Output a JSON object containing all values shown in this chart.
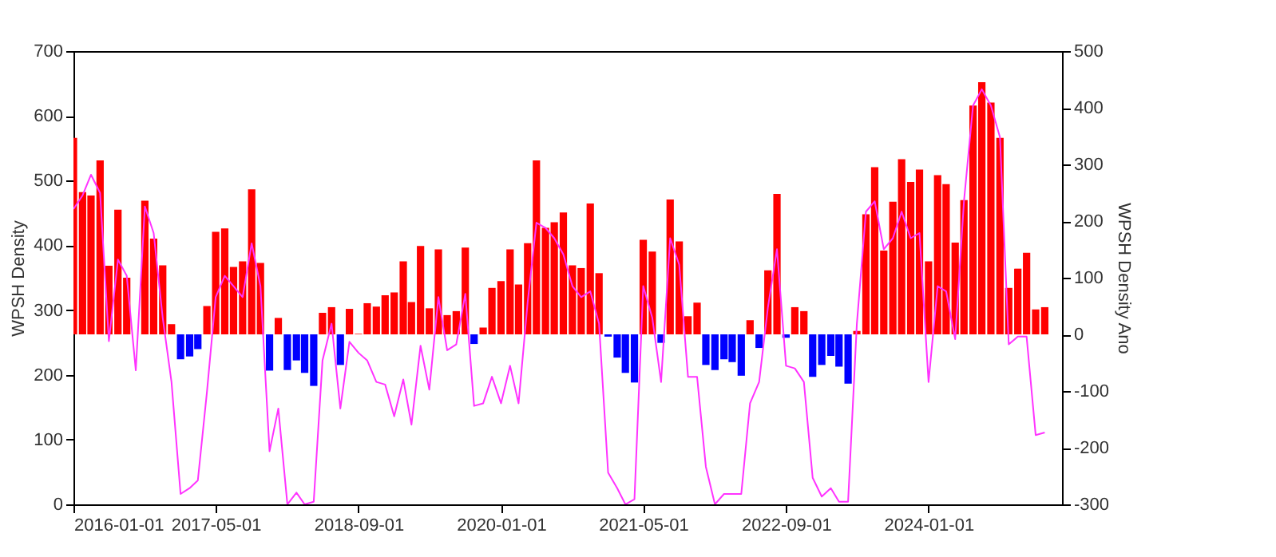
{
  "chart_data": {
    "type": "bar",
    "xlabel": null,
    "ylabel": "WPSH Density",
    "y2label": "WPSH Density Ano",
    "x": [
      "2016-01",
      "2016-02",
      "2016-03",
      "2016-04",
      "2016-05",
      "2016-06",
      "2016-07",
      "2016-08",
      "2016-09",
      "2016-10",
      "2016-11",
      "2016-12",
      "2017-01",
      "2017-02",
      "2017-03",
      "2017-04",
      "2017-05",
      "2017-06",
      "2017-07",
      "2017-08",
      "2017-09",
      "2017-10",
      "2017-11",
      "2017-12",
      "2018-01",
      "2018-02",
      "2018-03",
      "2018-04",
      "2018-05",
      "2018-06",
      "2018-07",
      "2018-08",
      "2018-09",
      "2018-10",
      "2018-11",
      "2018-12",
      "2019-01",
      "2019-02",
      "2019-03",
      "2019-04",
      "2019-05",
      "2019-06",
      "2019-07",
      "2019-08",
      "2019-09",
      "2019-10",
      "2019-11",
      "2019-12",
      "2020-01",
      "2020-02",
      "2020-03",
      "2020-04",
      "2020-05",
      "2020-06",
      "2020-07",
      "2020-08",
      "2020-09",
      "2020-10",
      "2020-11",
      "2020-12",
      "2021-01",
      "2021-02",
      "2021-03",
      "2021-04",
      "2021-05",
      "2021-06",
      "2021-07",
      "2021-08",
      "2021-09",
      "2021-10",
      "2021-11",
      "2021-12",
      "2022-01",
      "2022-02",
      "2022-03",
      "2022-04",
      "2022-05",
      "2022-06",
      "2022-07",
      "2022-08",
      "2022-09",
      "2022-10",
      "2022-11",
      "2022-12",
      "2023-01",
      "2023-02",
      "2023-03",
      "2023-04",
      "2023-05",
      "2023-06",
      "2023-07",
      "2023-08",
      "2023-09",
      "2023-10",
      "2023-11",
      "2023-12",
      "2024-01",
      "2024-02",
      "2024-03",
      "2024-04",
      "2024-05",
      "2024-06",
      "2024-07",
      "2024-08",
      "2024-09",
      "2024-10",
      "2024-11",
      "2024-12",
      "2025-01",
      "2025-02"
    ],
    "series": [
      {
        "axis": "y2",
        "color": "#ff0000",
        "values": [
          347,
          251,
          245,
          307,
          121,
          220,
          100,
          null,
          236,
          169,
          122,
          18,
          null,
          null,
          null,
          50,
          181,
          187,
          119,
          129,
          256,
          126,
          null,
          29,
          null,
          null,
          null,
          null,
          38,
          48,
          null,
          45,
          1,
          55,
          49,
          69,
          74,
          129,
          57,
          156,
          46,
          150,
          34,
          41,
          153,
          null,
          12,
          82,
          94,
          150,
          88,
          161,
          307,
          188,
          198,
          215,
          122,
          117,
          231,
          108,
          null,
          null,
          null,
          null,
          167,
          146,
          null,
          238,
          164,
          32,
          56,
          null,
          null,
          null,
          null,
          null,
          25,
          null,
          113,
          248,
          null,
          48,
          41,
          null,
          null,
          null,
          null,
          null,
          6,
          212,
          295,
          148,
          234,
          309,
          269,
          291,
          129,
          281,
          265,
          162,
          237,
          404,
          445,
          409,
          347,
          82,
          116,
          144,
          44,
          48
        ]
      },
      {
        "axis": "y2",
        "color": "#0000ff",
        "values": [
          null,
          null,
          null,
          null,
          null,
          null,
          null,
          null,
          null,
          null,
          null,
          null,
          -44,
          -39,
          -26,
          null,
          null,
          null,
          null,
          null,
          null,
          null,
          -64,
          null,
          -63,
          -46,
          -68,
          -91,
          null,
          null,
          -54,
          null,
          null,
          null,
          null,
          null,
          null,
          null,
          null,
          null,
          null,
          null,
          null,
          null,
          null,
          -17,
          null,
          null,
          null,
          null,
          null,
          null,
          null,
          null,
          null,
          null,
          null,
          null,
          null,
          null,
          -4,
          -41,
          -68,
          -85,
          null,
          null,
          -15,
          null,
          null,
          null,
          null,
          -54,
          -63,
          -44,
          -49,
          -73,
          null,
          -24,
          null,
          null,
          -6,
          null,
          null,
          -75,
          -54,
          -38,
          -57,
          -87,
          null,
          null,
          null,
          null,
          null,
          null,
          null,
          null,
          null,
          null,
          null,
          null,
          null,
          null,
          null,
          null,
          null,
          null,
          null,
          null,
          null,
          null
        ]
      },
      {
        "type": "line",
        "axis": "y",
        "color": "#ff33ff",
        "values": [
          456,
          477,
          509,
          481,
          252,
          378,
          353,
          207,
          460,
          419,
          288,
          189,
          16,
          25,
          37,
          173,
          320,
          353,
          337,
          320,
          403,
          337,
          82,
          148,
          0,
          18,
          0,
          4,
          222,
          279,
          148,
          251,
          234,
          222,
          189,
          185,
          136,
          193,
          123,
          245,
          177,
          320,
          238,
          247,
          325,
          152,
          156,
          197,
          156,
          214,
          156,
          312,
          435,
          427,
          411,
          386,
          337,
          320,
          329,
          279,
          49,
          25,
          0,
          8,
          337,
          288,
          189,
          411,
          370,
          197,
          197,
          58,
          0,
          16,
          16,
          16,
          156,
          189,
          304,
          394,
          214,
          210,
          189,
          41,
          12,
          25,
          4,
          4,
          279,
          452,
          468,
          394,
          411,
          452,
          411,
          419,
          189,
          337,
          329,
          255,
          468,
          616,
          641,
          616,
          567,
          247,
          259,
          259,
          107,
          111
        ]
      }
    ],
    "xlim": [
      "2016-01-01",
      "2025-04-01"
    ],
    "xticks": [
      "2016-01-01",
      "2017-05-01",
      "2018-09-01",
      "2020-01-01",
      "2021-05-01",
      "2022-09-01",
      "2024-01-01"
    ],
    "ylim": [
      0,
      700
    ],
    "yticks": [
      0,
      100,
      200,
      300,
      400,
      500,
      600,
      700
    ],
    "y2lim": [
      -300,
      500
    ],
    "y2ticks": [
      -300,
      -200,
      -100,
      0,
      100,
      200,
      300,
      400,
      500
    ],
    "grid": false,
    "marker": "none",
    "line_style": "solid"
  }
}
